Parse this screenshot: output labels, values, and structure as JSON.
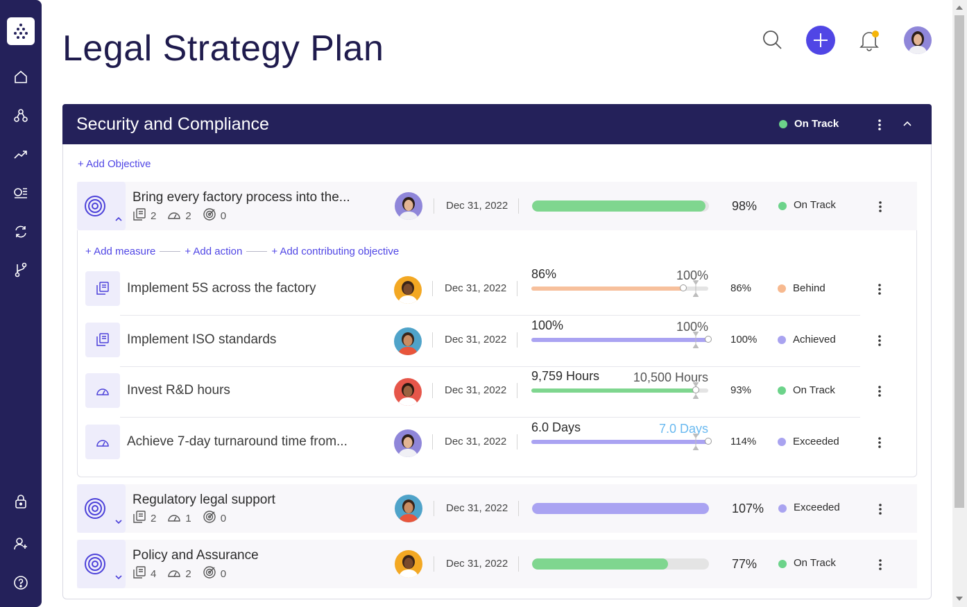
{
  "sidebar": {
    "icons": [
      "logo-icon",
      "home-icon",
      "hierarchy-icon",
      "trend-icon",
      "list-icon",
      "sync-icon",
      "branch-icon",
      "lock-icon",
      "add-user-icon",
      "help-icon"
    ]
  },
  "header": {
    "title": "Legal Strategy Plan"
  },
  "section": {
    "title": "Security and Compliance",
    "status": "On Track",
    "add_objective": "+ Add Objective"
  },
  "objectives": [
    {
      "title": "Bring every factory process into the...",
      "actions": "2",
      "measures": "2",
      "contributing": "0",
      "date": "Dec 31, 2022",
      "progress": 0.98,
      "pct": "98%",
      "status": "On Track",
      "status_color": "#6cd38a",
      "bar_color": "#7fd68f"
    },
    {
      "title": "Regulatory legal support",
      "actions": "2",
      "measures": "1",
      "contributing": "0",
      "date": "Dec 31, 2022",
      "progress": 1.0,
      "pct": "107%",
      "status": "Exceeded",
      "status_color": "#a9a3f0",
      "bar_color": "#aaa3f2"
    },
    {
      "title": "Policy and Assurance",
      "actions": "4",
      "measures": "2",
      "contributing": "0",
      "date": "Dec 31, 2022",
      "progress": 0.77,
      "pct": "77%",
      "status": "On Track",
      "status_color": "#6cd38a",
      "bar_color": "#7fd68f"
    }
  ],
  "add_links": {
    "measure": "+ Add measure",
    "action": "+ Add action",
    "contributing": "+ Add contributing objective"
  },
  "key_results": [
    {
      "title": "Implement 5S across the factory",
      "date": "Dec 31, 2022",
      "current": "86%",
      "target": "100%",
      "progress": 0.86,
      "pct": "86%",
      "status": "Behind",
      "status_color": "#f7b98f",
      "bar_color": "#f7c09c",
      "target_color": "#555555"
    },
    {
      "title": "Implement ISO standards",
      "date": "Dec 31, 2022",
      "current": "100%",
      "target": "100%",
      "progress": 1.0,
      "pct": "100%",
      "status": "Achieved",
      "status_color": "#a9a3f0",
      "bar_color": "#aaa3f2",
      "target_color": "#555555"
    },
    {
      "title": "Invest R&D hours",
      "date": "Dec 31, 2022",
      "current": "9,759 Hours",
      "target": "10,500 Hours",
      "progress": 0.93,
      "pct": "93%",
      "status": "On Track",
      "status_color": "#6cd38a",
      "bar_color": "#7fd68f",
      "target_color": "#555555"
    },
    {
      "title": "Achieve 7-day turnaround time from...",
      "date": "Dec 31, 2022",
      "current": "6.0 Days",
      "target": "7.0 Days",
      "progress": 1.0,
      "pct": "114%",
      "status": "Exceeded",
      "status_color": "#a9a3f0",
      "bar_color": "#aaa3f2",
      "target_color": "#69b9f0"
    }
  ]
}
